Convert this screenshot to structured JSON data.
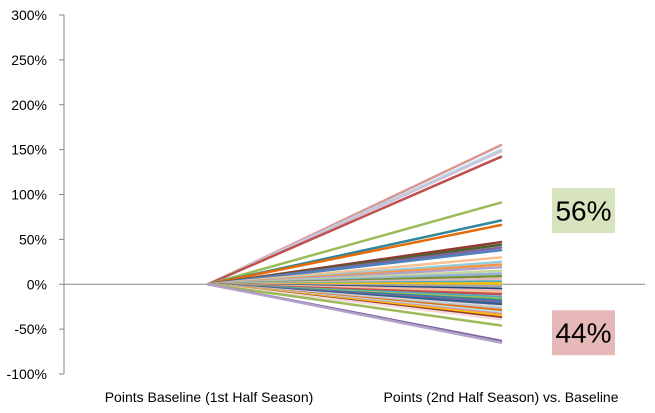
{
  "chart_data": {
    "type": "line",
    "categories": [
      "Points Baseline (1st Half Season)",
      "Points (2nd Half Season) vs. Baseline"
    ],
    "ylim": [
      -100,
      300
    ],
    "ytick_values": [
      -100,
      -50,
      0,
      50,
      100,
      150,
      200,
      250,
      300
    ],
    "ytick_labels": [
      "-100%",
      "-50%",
      "0%",
      "50%",
      "100%",
      "150%",
      "200%",
      "250%",
      "300%"
    ],
    "grid": false,
    "legend": "none",
    "series": [
      {
        "color": "#d99694",
        "values": [
          0,
          155
        ]
      },
      {
        "color": "#b7dee8",
        "values": [
          0,
          150
        ]
      },
      {
        "color": "#ccc1da",
        "values": [
          0,
          148
        ]
      },
      {
        "color": "#c0504d",
        "values": [
          0,
          142
        ]
      },
      {
        "color": "#9bbb59",
        "values": [
          0,
          91
        ]
      },
      {
        "color": "#31859c",
        "values": [
          0,
          71
        ]
      },
      {
        "color": "#e46c0a",
        "values": [
          0,
          66
        ]
      },
      {
        "color": "#953735",
        "values": [
          0,
          47
        ]
      },
      {
        "color": "#4f6228",
        "values": [
          0,
          44
        ]
      },
      {
        "color": "#8064a2",
        "values": [
          0,
          41
        ]
      },
      {
        "color": "#4f81bd",
        "values": [
          0,
          38
        ]
      },
      {
        "color": "#fac090",
        "values": [
          0,
          30
        ]
      },
      {
        "color": "#93cddd",
        "values": [
          0,
          25
        ]
      },
      {
        "color": "#f79646",
        "values": [
          0,
          22
        ]
      },
      {
        "color": "#b3a2c7",
        "values": [
          0,
          19
        ]
      },
      {
        "color": "#c3d69b",
        "values": [
          0,
          15
        ]
      },
      {
        "color": "#95b3d7",
        "values": [
          0,
          12
        ]
      },
      {
        "color": "#76923c",
        "values": [
          0,
          9
        ]
      },
      {
        "color": "#e6b9b8",
        "values": [
          0,
          6
        ]
      },
      {
        "color": "#4bacc6",
        "values": [
          0,
          3
        ]
      },
      {
        "color": "#ffc000",
        "values": [
          0,
          1
        ]
      },
      {
        "color": "#a5a5a5",
        "values": [
          0,
          -2
        ]
      },
      {
        "color": "#1f497d",
        "values": [
          0,
          -5
        ]
      },
      {
        "color": "#e6b9b8",
        "values": [
          0,
          -7
        ]
      },
      {
        "color": "#fac090",
        "values": [
          0,
          -9
        ]
      },
      {
        "color": "#c0504d",
        "values": [
          0,
          -11
        ]
      },
      {
        "color": "#4bacc6",
        "values": [
          0,
          -14
        ]
      },
      {
        "color": "#9bbb59",
        "values": [
          0,
          -16
        ]
      },
      {
        "color": "#31859c",
        "values": [
          0,
          -18
        ]
      },
      {
        "color": "#8064a2",
        "values": [
          0,
          -20
        ]
      },
      {
        "color": "#366092",
        "values": [
          0,
          -22
        ]
      },
      {
        "color": "#d9d9d9",
        "values": [
          0,
          -25
        ]
      },
      {
        "color": "#bfbfbf",
        "values": [
          0,
          -27
        ]
      },
      {
        "color": "#e46c0a",
        "values": [
          0,
          -29
        ]
      },
      {
        "color": "#b7dee8",
        "values": [
          0,
          -31
        ]
      },
      {
        "color": "#d99694",
        "values": [
          0,
          -33
        ]
      },
      {
        "color": "#ffc000",
        "values": [
          0,
          -35
        ]
      },
      {
        "color": "#953735",
        "values": [
          0,
          -37
        ]
      },
      {
        "color": "#f2dcdb",
        "values": [
          0,
          -39
        ]
      },
      {
        "color": "#9bbb59",
        "values": [
          0,
          -46
        ]
      },
      {
        "color": "#8064a2",
        "values": [
          0,
          -63
        ]
      },
      {
        "color": "#b3a2c7",
        "values": [
          0,
          -65
        ]
      }
    ],
    "annotations": [
      {
        "text": "56%",
        "color": "#d7e4bd",
        "anchor_value": 82
      },
      {
        "text": "44%",
        "color": "#e6b9b8",
        "anchor_value": -54
      }
    ]
  }
}
